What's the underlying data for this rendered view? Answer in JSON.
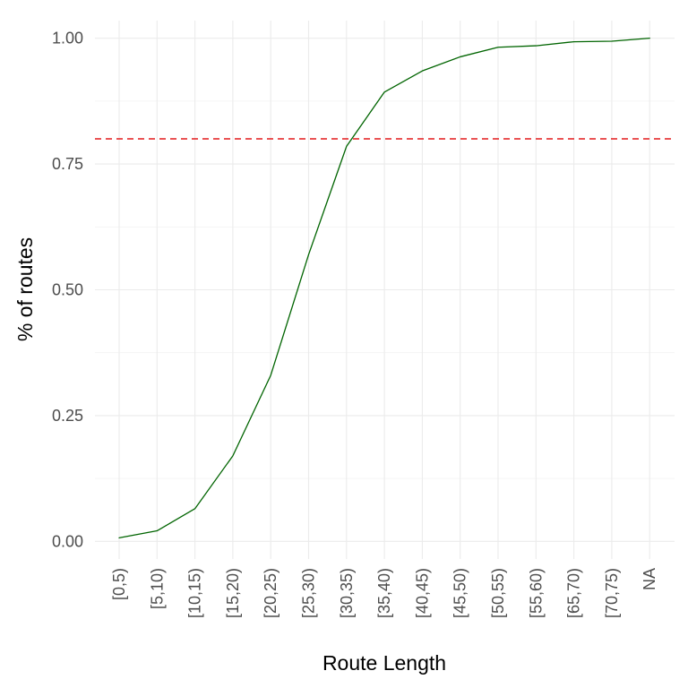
{
  "chart_data": {
    "type": "line",
    "title": "",
    "xlabel": "Route Length",
    "ylabel": "% of routes",
    "categories": [
      "[0,5)",
      "[5,10)",
      "[10,15)",
      "[15,20)",
      "[20,25)",
      "[25,30)",
      "[30,35)",
      "[35,40)",
      "[40,45)",
      "[45,50)",
      "[50,55)",
      "[55,60)",
      "[65,70)",
      "[70,75)",
      "NA"
    ],
    "values": [
      0.007,
      0.021,
      0.065,
      0.17,
      0.33,
      0.57,
      0.785,
      0.893,
      0.935,
      0.963,
      0.982,
      0.985,
      0.993,
      0.994,
      1.0
    ],
    "y_ticks": [
      "0.00",
      "0.25",
      "0.50",
      "0.75",
      "1.00"
    ],
    "y_tick_values": [
      0,
      0.25,
      0.5,
      0.75,
      1.0
    ],
    "ylim": [
      -0.035,
      1.035
    ],
    "reference_line": {
      "y": 0.8,
      "style": "dashed",
      "color": "#e41a1c"
    },
    "line_color": "#006400",
    "grid": true,
    "legend": "none"
  }
}
